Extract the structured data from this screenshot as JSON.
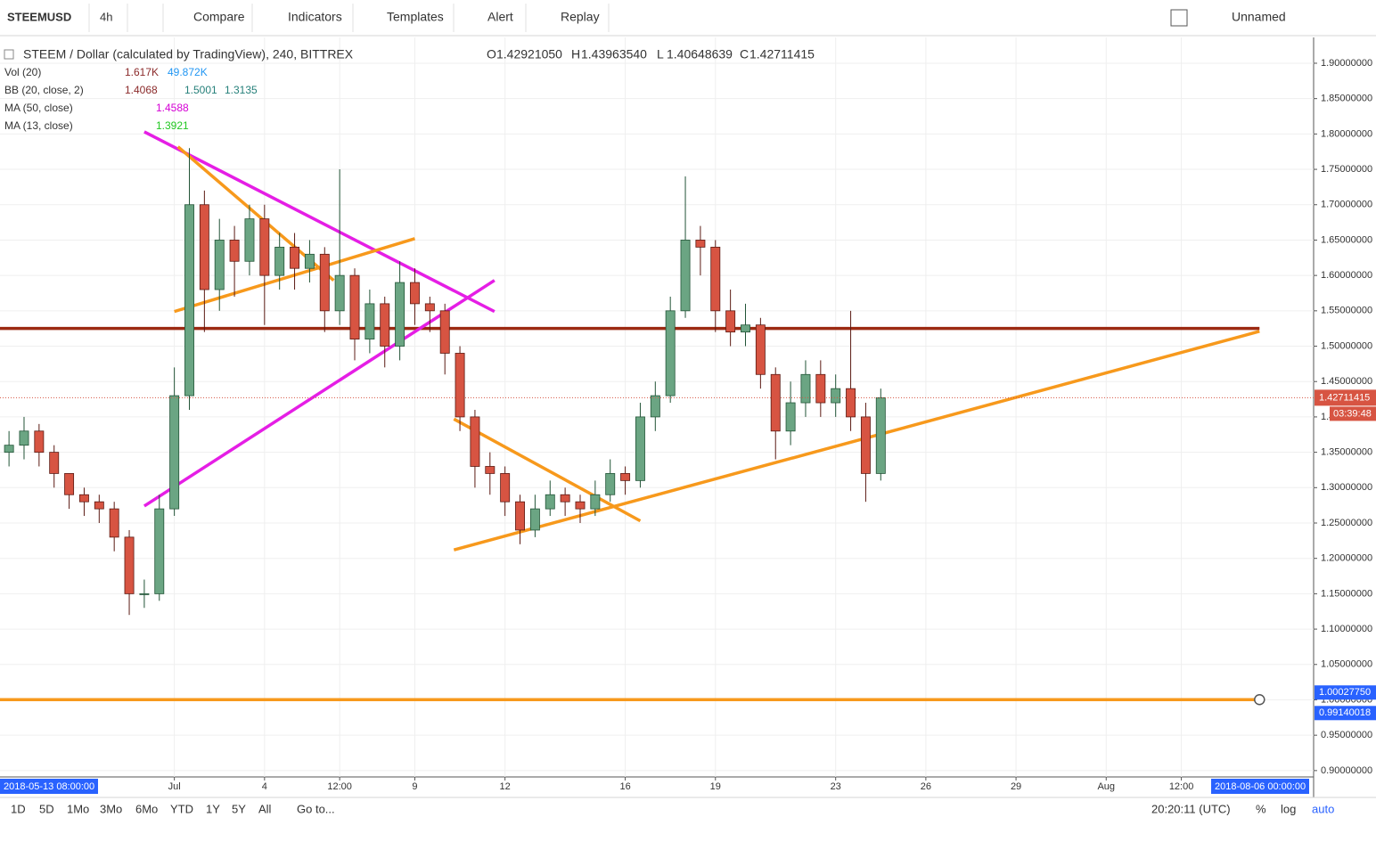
{
  "toolbar": {
    "symbol": "STEEMUSD",
    "interval": "4h",
    "buttons": [
      "Compare",
      "Indicators",
      "Templates",
      "Alert",
      "Replay"
    ],
    "layout_name": "Unnamed"
  },
  "legend": {
    "title": "STEEM / Dollar (calculated by TradingView), 240, BITTREX",
    "ohlc": [
      {
        "label": "O",
        "value": "1.42921050"
      },
      {
        "label": "H",
        "value": "1.43963540"
      },
      {
        "label": "L",
        "value": "1.40648639"
      },
      {
        "label": "C",
        "value": "1.42711415"
      }
    ],
    "indicators": [
      {
        "name": "Vol (20)",
        "values": [
          "1.617K",
          "49.872K"
        ],
        "colors": [
          "#8b2a2a",
          "#2196f3"
        ]
      },
      {
        "name": "BB (20, close, 2)",
        "values": [
          "1.4068",
          "1.5001",
          "1.3135"
        ],
        "colors": [
          "#8b2a2a",
          "#26807a",
          "#26807a"
        ]
      },
      {
        "name": "MA (50, close)",
        "values": [
          "1.4588"
        ],
        "colors": [
          "#d500d5"
        ]
      },
      {
        "name": "MA (13, close)",
        "values": [
          "1.3921"
        ],
        "colors": [
          "#22c722"
        ]
      }
    ]
  },
  "chart_data": {
    "type": "candlestick",
    "x": [
      -5.5,
      -5,
      -4.5,
      -4,
      -3.5,
      -3,
      -2.5,
      -2,
      -1.5,
      -1,
      -0.5,
      0,
      0.5,
      1,
      1.5,
      2,
      2.5,
      3,
      3.5,
      4,
      4.5,
      5,
      5.5,
      6,
      6.5,
      7,
      7.5,
      8,
      8.5,
      9,
      9.5,
      10,
      10.5,
      11,
      11.5,
      12,
      12.5,
      13,
      13.5,
      14,
      14.5,
      15,
      15.5,
      16,
      16.5,
      17,
      17.5,
      18,
      18.5,
      19,
      19.5,
      20,
      20.5,
      21,
      21.5,
      22,
      22.5,
      23,
      23.5
    ],
    "open": [
      1.35,
      1.36,
      1.38,
      1.35,
      1.32,
      1.29,
      1.28,
      1.27,
      1.23,
      1.15,
      1.15,
      1.27,
      1.43,
      1.7,
      1.58,
      1.65,
      1.62,
      1.68,
      1.6,
      1.64,
      1.61,
      1.63,
      1.55,
      1.6,
      1.51,
      1.56,
      1.5,
      1.59,
      1.56,
      1.55,
      1.49,
      1.4,
      1.33,
      1.32,
      1.28,
      1.24,
      1.27,
      1.29,
      1.28,
      1.27,
      1.29,
      1.32,
      1.31,
      1.4,
      1.43,
      1.55,
      1.65,
      1.64,
      1.55,
      1.52,
      1.53,
      1.46,
      1.38,
      1.42,
      1.46,
      1.42,
      1.44,
      1.4,
      1.32
    ],
    "high": [
      1.38,
      1.4,
      1.39,
      1.36,
      1.32,
      1.3,
      1.29,
      1.28,
      1.24,
      1.17,
      1.29,
      1.47,
      1.78,
      1.72,
      1.68,
      1.67,
      1.7,
      1.7,
      1.66,
      1.66,
      1.65,
      1.64,
      1.75,
      1.61,
      1.58,
      1.57,
      1.62,
      1.61,
      1.57,
      1.56,
      1.5,
      1.41,
      1.35,
      1.33,
      1.29,
      1.29,
      1.31,
      1.3,
      1.29,
      1.31,
      1.34,
      1.33,
      1.42,
      1.45,
      1.57,
      1.74,
      1.67,
      1.65,
      1.58,
      1.56,
      1.54,
      1.47,
      1.45,
      1.48,
      1.48,
      1.46,
      1.55,
      1.42,
      1.44
    ],
    "low": [
      1.33,
      1.34,
      1.33,
      1.3,
      1.27,
      1.26,
      1.25,
      1.21,
      1.12,
      1.13,
      1.14,
      1.26,
      1.41,
      1.52,
      1.55,
      1.57,
      1.6,
      1.53,
      1.58,
      1.58,
      1.59,
      1.52,
      1.53,
      1.48,
      1.49,
      1.47,
      1.48,
      1.53,
      1.52,
      1.46,
      1.38,
      1.3,
      1.29,
      1.26,
      1.22,
      1.23,
      1.26,
      1.26,
      1.25,
      1.26,
      1.28,
      1.29,
      1.3,
      1.38,
      1.42,
      1.54,
      1.6,
      1.52,
      1.5,
      1.5,
      1.44,
      1.34,
      1.36,
      1.4,
      1.4,
      1.4,
      1.38,
      1.28,
      1.31
    ],
    "close": [
      1.36,
      1.38,
      1.35,
      1.32,
      1.29,
      1.28,
      1.27,
      1.23,
      1.15,
      1.15,
      1.27,
      1.43,
      1.7,
      1.58,
      1.65,
      1.62,
      1.68,
      1.6,
      1.64,
      1.61,
      1.63,
      1.55,
      1.6,
      1.51,
      1.56,
      1.5,
      1.59,
      1.56,
      1.55,
      1.49,
      1.4,
      1.33,
      1.32,
      1.28,
      1.24,
      1.27,
      1.29,
      1.28,
      1.27,
      1.29,
      1.32,
      1.31,
      1.4,
      1.43,
      1.55,
      1.65,
      1.64,
      1.55,
      1.52,
      1.53,
      1.46,
      1.38,
      1.42,
      1.46,
      1.42,
      1.44,
      1.4,
      1.32,
      1.42711415
    ],
    "up_color": "#6ba583",
    "down_color": "#d75442",
    "xlim": [
      -5.8,
      37.9
    ],
    "xticks": [
      {
        "value": 0,
        "label": "Jul"
      },
      {
        "value": 3,
        "label": "4"
      },
      {
        "value": 5.5,
        "label": "12:00"
      },
      {
        "value": 8,
        "label": "9"
      },
      {
        "value": 11,
        "label": "12"
      },
      {
        "value": 15,
        "label": "16"
      },
      {
        "value": 18,
        "label": "19"
      },
      {
        "value": 22,
        "label": "23"
      },
      {
        "value": 25,
        "label": "26"
      },
      {
        "value": 28,
        "label": "29"
      },
      {
        "value": 31,
        "label": "Aug"
      },
      {
        "value": 33.5,
        "label": "12:00"
      }
    ],
    "ylim": [
      0.891,
      1.9365
    ],
    "yticks": [
      {
        "value": 0.9,
        "label": "0.90000000"
      },
      {
        "value": 0.95,
        "label": "0.95000000"
      },
      {
        "value": 1,
        "label": "1.00000000"
      },
      {
        "value": 1.05,
        "label": "1.05000000"
      },
      {
        "value": 1.1,
        "label": "1.10000000"
      },
      {
        "value": 1.15,
        "label": "1.15000000"
      },
      {
        "value": 1.2,
        "label": "1.20000000"
      },
      {
        "value": 1.25,
        "label": "1.25000000"
      },
      {
        "value": 1.3,
        "label": "1.30000000"
      },
      {
        "value": 1.35,
        "label": "1.35000000"
      },
      {
        "value": 1.4,
        "label": "1.40000000"
      },
      {
        "value": 1.45,
        "label": "1.45000000"
      },
      {
        "value": 1.5,
        "label": "1.50000000"
      },
      {
        "value": 1.55,
        "label": "1.55000000"
      },
      {
        "value": 1.6,
        "label": "1.60000000"
      },
      {
        "value": 1.65,
        "label": "1.65000000"
      },
      {
        "value": 1.7,
        "label": "1.70000000"
      },
      {
        "value": 1.75,
        "label": "1.75000000"
      },
      {
        "value": 1.8,
        "label": "1.80000000"
      },
      {
        "value": 1.85,
        "label": "1.85000000"
      },
      {
        "value": 1.9,
        "label": "1.90000000"
      }
    ],
    "grid": true,
    "drawings": [
      {
        "color": "#9c2a12",
        "x": [
          -5.8,
          36.1
        ],
        "y": [
          1.525,
          1.525
        ]
      },
      {
        "color": "#f7991c",
        "x": [
          -5.8,
          36.1
        ],
        "y": [
          1.0002775,
          1.0002775
        ]
      },
      {
        "color": "#e51ee5",
        "x": [
          -1,
          10.65
        ],
        "y": [
          1.803,
          1.549
        ]
      },
      {
        "color": "#e51ee5",
        "x": [
          -1,
          10.65
        ],
        "y": [
          1.274,
          1.593
        ]
      },
      {
        "color": "#f7991c",
        "x": [
          0.12,
          5.3
        ],
        "y": [
          1.782,
          1.593
        ]
      },
      {
        "color": "#f7991c",
        "x": [
          0,
          8
        ],
        "y": [
          1.549,
          1.652
        ]
      },
      {
        "color": "#f7991c",
        "x": [
          9.3,
          15.5
        ],
        "y": [
          1.397,
          1.253
        ]
      },
      {
        "color": "#f7991c",
        "x": [
          9.3,
          36.1
        ],
        "y": [
          1.212,
          1.521
        ]
      }
    ],
    "price_labels": [
      {
        "value": 1.0002775,
        "label": "1.00027750"
      },
      {
        "value": 0.99140018,
        "label": "0.99140018"
      }
    ],
    "countdown": "03:39:48",
    "range_labels": [
      "2018-05-13 08:00:00",
      "2018-08-06 00:00:00"
    ]
  },
  "bottom_bar": {
    "ranges": [
      "1D",
      "5D",
      "1Mo",
      "3Mo",
      "6Mo",
      "YTD",
      "1Y",
      "5Y",
      "All"
    ],
    "goto": "Go to...",
    "clock": "20:20:11 (UTC)",
    "scale_options": [
      "%",
      "log",
      "auto"
    ]
  }
}
